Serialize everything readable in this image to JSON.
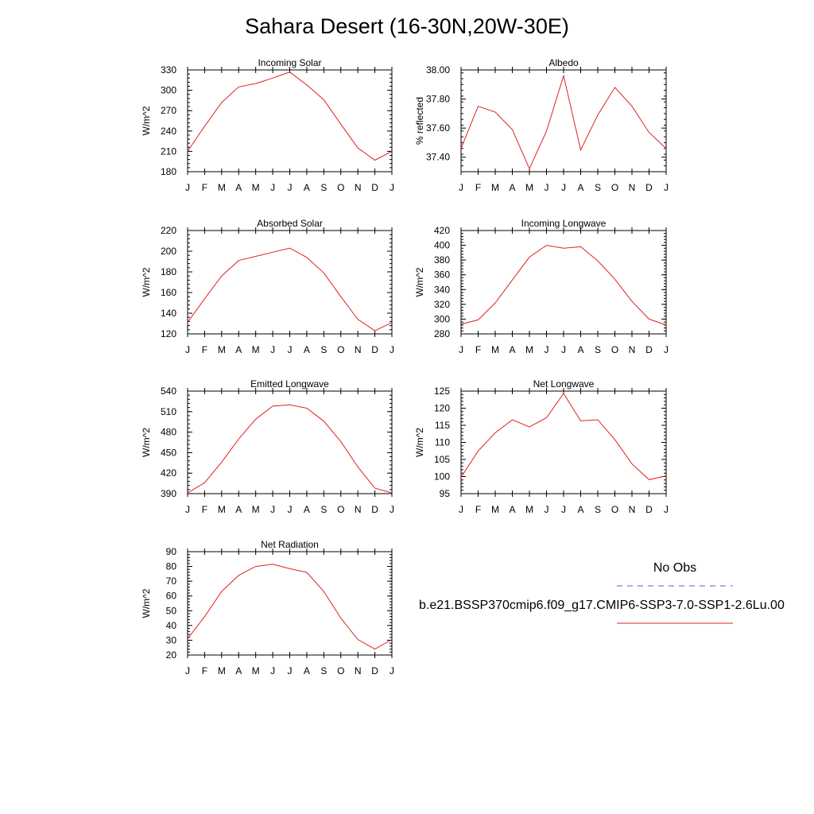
{
  "page_title": "Sahara Desert (16-30N,20W-30E)",
  "legend": {
    "obs_label": "No Obs",
    "obs_color": "#5a5ae0",
    "case_label": "b.e21.BSSP370cmip6.f09_g17.CMIP6-SSP3-7.0-SSP1-2.6Lu.00",
    "case_color": "#e02020"
  },
  "chart_data": [
    {
      "type": "line",
      "title": "Incoming Solar",
      "ylabel": "W/m^2",
      "x": [
        "J",
        "F",
        "M",
        "A",
        "M",
        "J",
        "J",
        "A",
        "S",
        "O",
        "N",
        "D",
        "J"
      ],
      "ylim": [
        180,
        330
      ],
      "yticks": [
        180,
        210,
        240,
        270,
        300,
        330
      ],
      "ytick_labels": [
        "180",
        "210",
        "240",
        "270",
        "300",
        "330"
      ],
      "series": [
        {
          "values": [
            210,
            247,
            282,
            305,
            310,
            318,
            327,
            308,
            286,
            250,
            215,
            197,
            210
          ]
        }
      ]
    },
    {
      "type": "line",
      "title": "Albedo",
      "ylabel": "% reflected",
      "x": [
        "J",
        "F",
        "M",
        "A",
        "M",
        "J",
        "J",
        "A",
        "S",
        "O",
        "N",
        "D",
        "J"
      ],
      "ylim": [
        37.3,
        38.0
      ],
      "yticks": [
        37.4,
        37.6,
        37.8,
        38.0
      ],
      "ytick_labels": [
        "37.40",
        "37.60",
        "37.80",
        "38.00"
      ],
      "series": [
        {
          "values": [
            37.46,
            37.75,
            37.71,
            37.59,
            37.32,
            37.58,
            37.96,
            37.45,
            37.69,
            37.88,
            37.75,
            37.57,
            37.46
          ]
        }
      ]
    },
    {
      "type": "line",
      "title": "Absorbed Solar",
      "ylabel": "W/m^2",
      "x": [
        "J",
        "F",
        "M",
        "A",
        "M",
        "J",
        "J",
        "A",
        "S",
        "O",
        "N",
        "D",
        "J"
      ],
      "ylim": [
        120,
        220
      ],
      "yticks": [
        120,
        140,
        160,
        180,
        200,
        220
      ],
      "ytick_labels": [
        "120",
        "140",
        "160",
        "180",
        "200",
        "220"
      ],
      "series": [
        {
          "values": [
            131,
            154,
            176,
            191,
            195,
            199,
            203,
            194,
            179,
            156,
            134,
            123,
            131
          ]
        }
      ]
    },
    {
      "type": "line",
      "title": "Incoming Longwave",
      "ylabel": "W/m^2",
      "x": [
        "J",
        "F",
        "M",
        "A",
        "M",
        "J",
        "J",
        "A",
        "S",
        "O",
        "N",
        "D",
        "J"
      ],
      "ylim": [
        280,
        420
      ],
      "yticks": [
        280,
        300,
        320,
        340,
        360,
        380,
        400,
        420
      ],
      "ytick_labels": [
        "280",
        "300",
        "320",
        "340",
        "360",
        "380",
        "400",
        "420"
      ],
      "series": [
        {
          "values": [
            293,
            299,
            322,
            353,
            384,
            400,
            396,
            398,
            379,
            354,
            324,
            300,
            292
          ]
        }
      ]
    },
    {
      "type": "line",
      "title": "Emitted Longwave",
      "ylabel": "W/m^2",
      "x": [
        "J",
        "F",
        "M",
        "A",
        "M",
        "J",
        "J",
        "A",
        "S",
        "O",
        "N",
        "D",
        "J"
      ],
      "ylim": [
        390,
        540
      ],
      "yticks": [
        390,
        420,
        450,
        480,
        510,
        540
      ],
      "ytick_labels": [
        "390",
        "420",
        "450",
        "480",
        "510",
        "540"
      ],
      "series": [
        {
          "values": [
            391,
            406,
            436,
            470,
            499,
            518,
            520,
            515,
            496,
            466,
            429,
            398,
            391
          ]
        }
      ]
    },
    {
      "type": "line",
      "title": "Net Longwave",
      "ylabel": "W/m^2",
      "x": [
        "J",
        "F",
        "M",
        "A",
        "M",
        "J",
        "J",
        "A",
        "S",
        "O",
        "N",
        "D",
        "J"
      ],
      "ylim": [
        95,
        125
      ],
      "yticks": [
        95,
        100,
        105,
        110,
        115,
        120,
        125
      ],
      "ytick_labels": [
        "95",
        "100",
        "105",
        "110",
        "115",
        "120",
        "125"
      ],
      "series": [
        {
          "values": [
            99.8,
            107.5,
            112.8,
            116.6,
            114.5,
            117.2,
            124.3,
            116.3,
            116.6,
            110.8,
            103.7,
            99.1,
            100.2
          ]
        }
      ]
    },
    {
      "type": "line",
      "title": "Net Radiation",
      "ylabel": "W/m^2",
      "x": [
        "J",
        "F",
        "M",
        "A",
        "M",
        "J",
        "J",
        "A",
        "S",
        "O",
        "N",
        "D",
        "J"
      ],
      "ylim": [
        20,
        90
      ],
      "yticks": [
        20,
        30,
        40,
        50,
        60,
        70,
        80,
        90
      ],
      "ytick_labels": [
        "20",
        "30",
        "40",
        "50",
        "60",
        "70",
        "80",
        "90"
      ],
      "series": [
        {
          "values": [
            31,
            46,
            63,
            74,
            80,
            81.5,
            78.5,
            76,
            63,
            45,
            30.5,
            24,
            30.5
          ]
        }
      ]
    }
  ]
}
